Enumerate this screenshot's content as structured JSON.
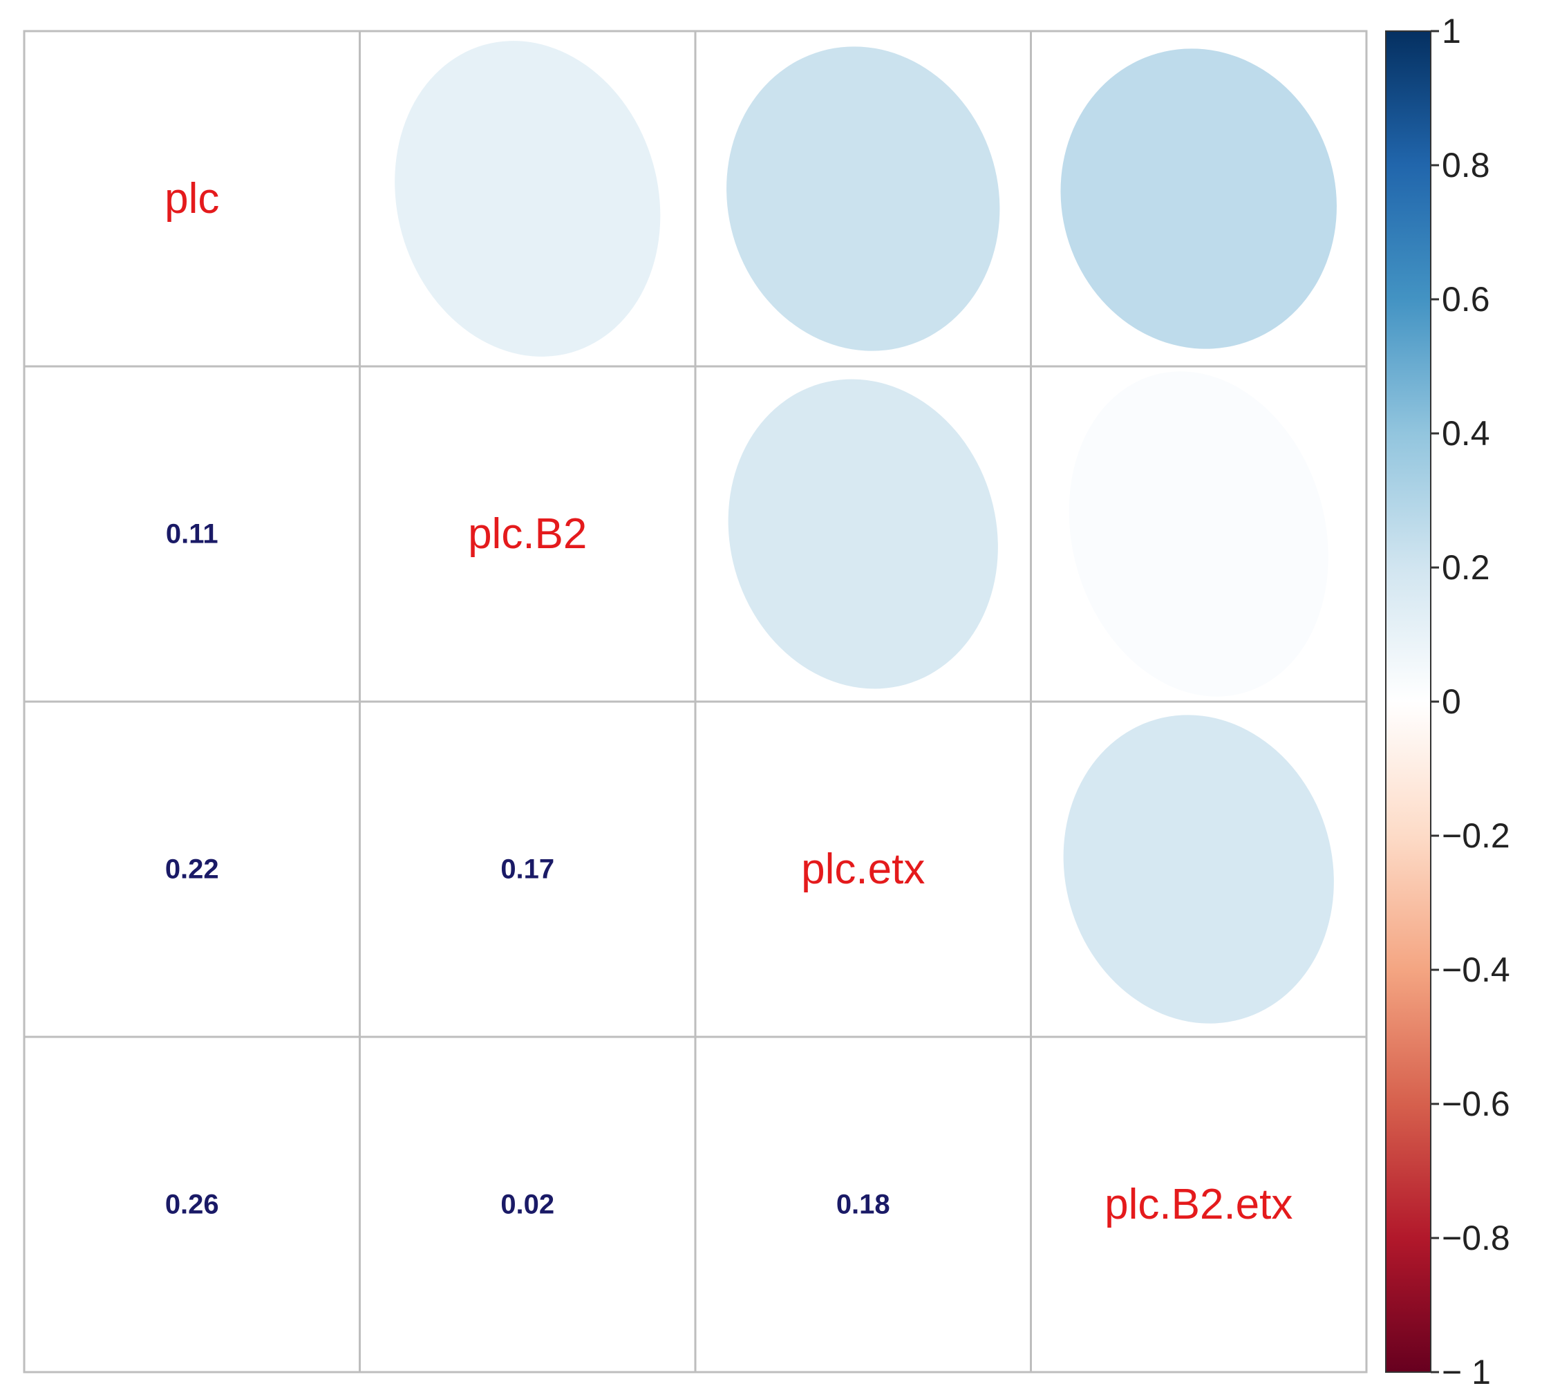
{
  "chart_data": {
    "type": "heatmap",
    "variables": [
      "plc",
      "plc.B2",
      "plc.etx",
      "plc.B2.etx"
    ],
    "matrix": [
      [
        1.0,
        0.11,
        0.22,
        0.26
      ],
      [
        0.11,
        1.0,
        0.17,
        0.02
      ],
      [
        0.22,
        0.17,
        1.0,
        0.18
      ],
      [
        0.26,
        0.02,
        0.18,
        1.0
      ]
    ],
    "lower_labels": [
      {
        "row": 1,
        "col": 0,
        "text": "0.11"
      },
      {
        "row": 2,
        "col": 0,
        "text": "0.22"
      },
      {
        "row": 2,
        "col": 1,
        "text": "0.17"
      },
      {
        "row": 3,
        "col": 0,
        "text": "0.26"
      },
      {
        "row": 3,
        "col": 1,
        "text": "0.02"
      },
      {
        "row": 3,
        "col": 2,
        "text": "0.18"
      }
    ],
    "colorbar": {
      "range": [
        -1,
        1
      ],
      "ticks": [
        1,
        0.8,
        0.6,
        0.4,
        0.2,
        0,
        -0.2,
        -0.4,
        -0.6,
        -0.8,
        -1
      ],
      "tick_labels": [
        "1",
        "0.8",
        "0.6",
        "0.4",
        "0.2",
        "0",
        "−0.2",
        "−0.4",
        "−0.6",
        "−0.8",
        "− 1"
      ],
      "colors": [
        "#67001F",
        "#B2182B",
        "#D6604D",
        "#F4A582",
        "#FDDBC7",
        "#FFFFFF",
        "#D1E5F0",
        "#92C5DE",
        "#4393C3",
        "#2166AC",
        "#053061"
      ]
    },
    "upper": "ellipse",
    "lower": "number",
    "diagonal": "variable-name",
    "grid": true
  },
  "colors": {
    "label_text": "#E41A1C",
    "number_text": "#1A1A66",
    "grid": "#BEBEBE"
  }
}
